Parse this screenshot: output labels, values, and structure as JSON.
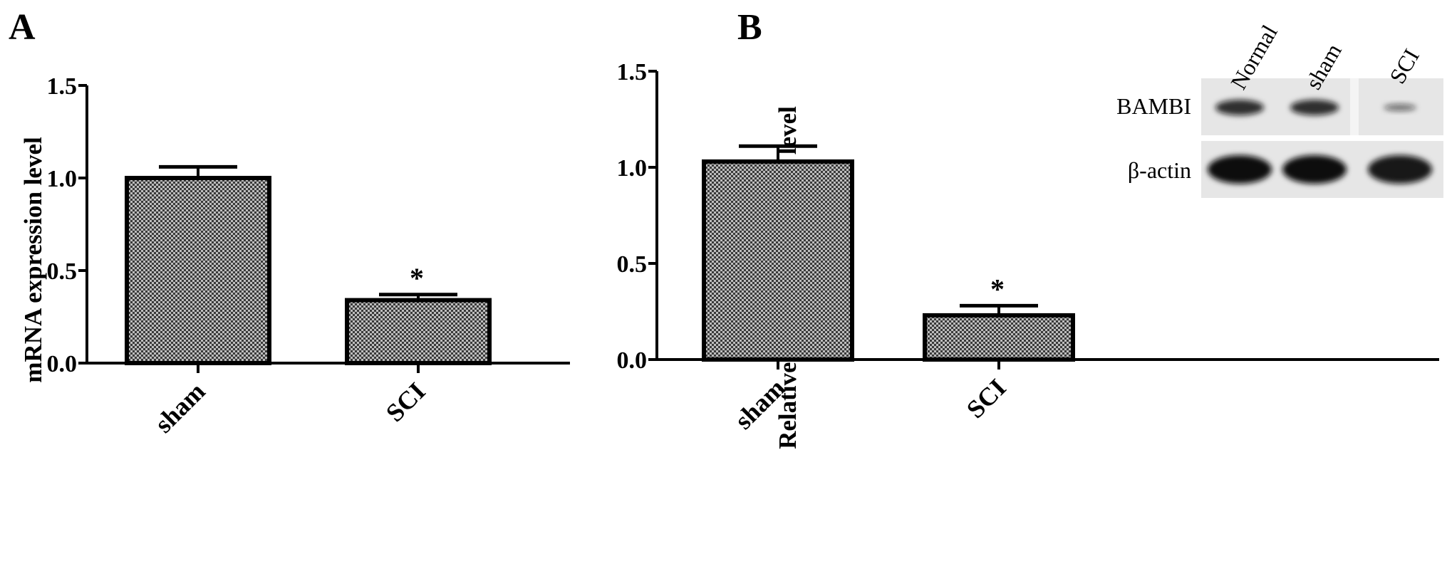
{
  "colors": {
    "ink": "#000000",
    "bar_pattern_dark": "#3a3a3a",
    "bar_pattern_light": "#bdbdbd",
    "blot_bg": "#e6e6e6",
    "band": "#111111"
  },
  "chart_data": [
    {
      "panel": "A",
      "type": "bar",
      "categories": [
        "sham",
        "SCI"
      ],
      "values": [
        1.0,
        0.34
      ],
      "errors": [
        0.06,
        0.03
      ],
      "significance": [
        "",
        "*"
      ],
      "ylabel": "mRNA expression level",
      "xlabel": "",
      "ylim": [
        0,
        1.5
      ],
      "yticks": [
        "0.0",
        "0.5",
        "1.0",
        "1.5"
      ],
      "grid": false
    },
    {
      "panel": "B",
      "type": "bar",
      "categories": [
        "sham",
        "SCI"
      ],
      "values": [
        1.03,
        0.23
      ],
      "errors": [
        0.08,
        0.05
      ],
      "significance": [
        "",
        "*"
      ],
      "ylabel": "Relative protein expression level",
      "xlabel": "",
      "ylim": [
        0,
        1.5
      ],
      "yticks": [
        "0.0",
        "0.5",
        "1.0",
        "1.5"
      ],
      "grid": false,
      "inset": {
        "lanes": [
          "Normal",
          "sham",
          "SCI"
        ],
        "rows": [
          {
            "label": "BAMBI",
            "intensity": [
              0.85,
              0.85,
              0.55
            ]
          },
          {
            "label": "β-actin",
            "intensity": [
              1.0,
              1.0,
              0.95
            ]
          }
        ]
      }
    }
  ]
}
